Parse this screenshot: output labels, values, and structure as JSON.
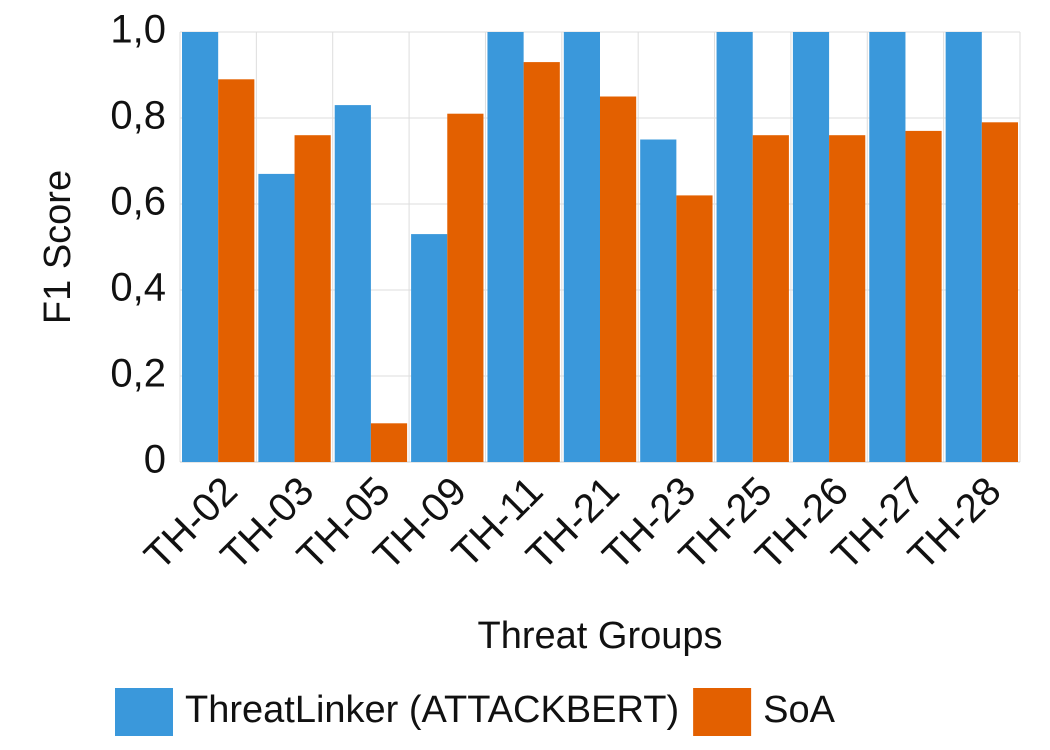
{
  "chart_data": {
    "type": "bar",
    "categories": [
      "TH-02",
      "TH-03",
      "TH-05",
      "TH-09",
      "TH-11",
      "TH-21",
      "TH-23",
      "TH-25",
      "TH-26",
      "TH-27",
      "TH-28"
    ],
    "series": [
      {
        "name": "ThreatLinker (ATTACKBERT)",
        "color": "#3a98db",
        "values": [
          1.0,
          0.67,
          0.83,
          0.53,
          1.0,
          1.0,
          0.75,
          1.0,
          1.0,
          1.0,
          1.0
        ]
      },
      {
        "name": "SoA",
        "color": "#e36000",
        "values": [
          0.89,
          0.76,
          0.09,
          0.81,
          0.93,
          0.85,
          0.62,
          0.76,
          0.76,
          0.77,
          0.79
        ]
      }
    ],
    "xlabel": "Threat Groups",
    "ylabel": "F1 Score",
    "ylim": [
      0,
      1
    ],
    "yticks": [
      0,
      {
        "value": 0.2,
        "label": "0,2"
      },
      {
        "value": 0.4,
        "label": "0,4"
      },
      {
        "value": 0.6,
        "label": "0,6"
      },
      {
        "value": 0.8,
        "label": "0,8"
      },
      {
        "value": 1,
        "label": "1,0"
      }
    ],
    "grid": true,
    "legend": "bottom"
  }
}
